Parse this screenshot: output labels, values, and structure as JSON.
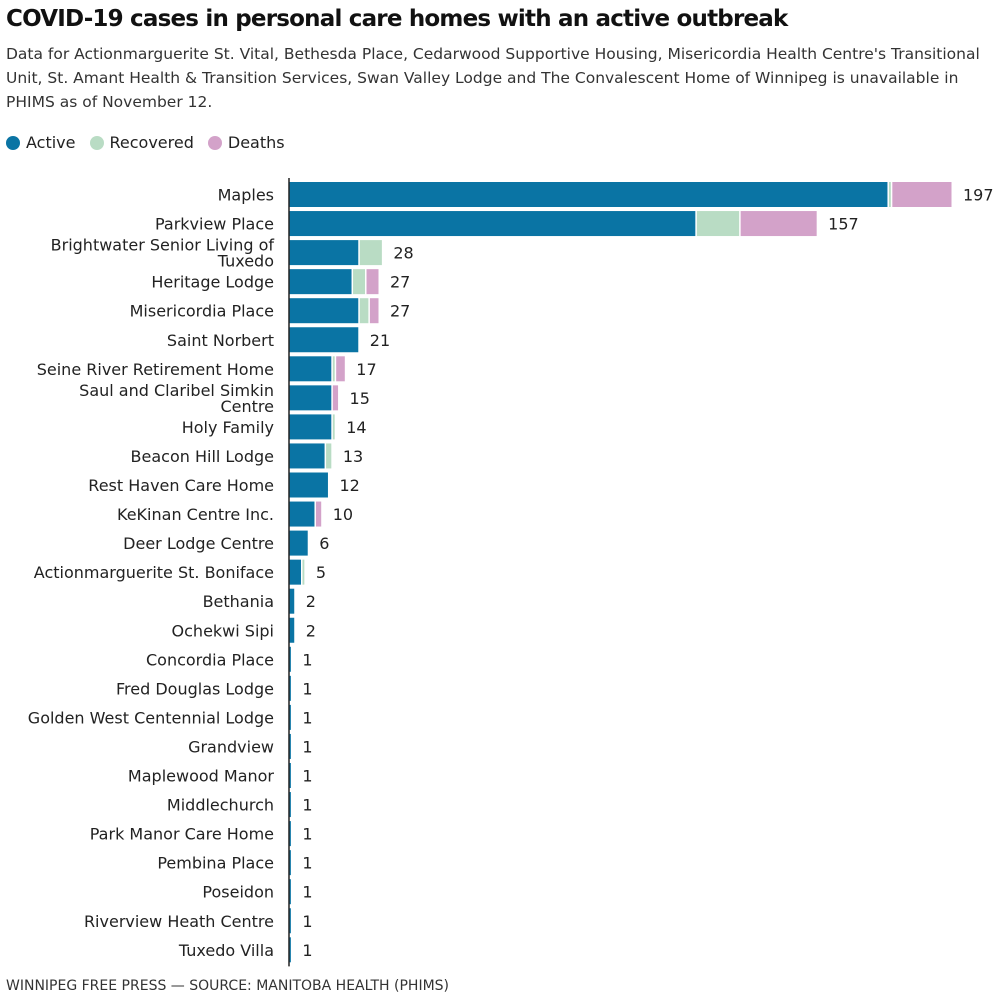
{
  "title": "COVID-19 cases in personal care homes with an active outbreak",
  "subtitle": "Data for Actionmarguerite St. Vital, Bethesda Place, Cedarwood Supportive Housing, Misericordia Health Centre's Transitional Unit, St. Amant Health & Transition Services, Swan Valley Lodge and The Convalescent Home of Winnipeg is unavailable in PHIMS as of November 12.",
  "footer": "WINNIPEG FREE PRESS — SOURCE: MANITOBA HEALTH (PHIMS)",
  "chart_data": {
    "type": "bar",
    "orientation": "horizontal",
    "stacked": true,
    "legend_position": "top-left",
    "grid": false,
    "xlim": [
      0,
      197
    ],
    "categories": [
      "Maples",
      "Parkview Place",
      "Brightwater Senior Living of Tuxedo",
      "Heritage Lodge",
      "Misericordia Place",
      "Saint Norbert",
      "Seine River Retirement Home",
      "Saul and Claribel Simkin Centre",
      "Holy Family",
      "Beacon Hill Lodge",
      "Rest Haven Care Home",
      "KeKinan Centre Inc.",
      "Deer Lodge Centre",
      "Actionmarguerite St. Boniface",
      "Bethania",
      "Ochekwi Sipi",
      "Concordia Place",
      "Fred Douglas Lodge",
      "Golden West Centennial Lodge",
      "Grandview",
      "Maplewood Manor",
      "Middlechurch",
      "Park Manor Care Home",
      "Pembina Place",
      "Poseidon",
      "Riverview Heath Centre",
      "Tuxedo Villa"
    ],
    "series": [
      {
        "name": "Active",
        "color": "#0a74a4",
        "values": [
          178,
          121,
          21,
          19,
          21,
          21,
          13,
          13,
          13,
          11,
          12,
          8,
          6,
          4,
          2,
          2,
          1,
          1,
          1,
          1,
          1,
          1,
          1,
          1,
          1,
          1,
          1
        ]
      },
      {
        "name": "Recovered",
        "color": "#b9dcc4",
        "values": [
          1,
          13,
          7,
          4,
          3,
          0,
          1,
          0,
          1,
          2,
          0,
          0,
          0,
          1,
          0,
          0,
          0,
          0,
          0,
          0,
          0,
          0,
          0,
          0,
          0,
          0,
          0
        ]
      },
      {
        "name": "Deaths",
        "color": "#d3a2c9",
        "values": [
          18,
          23,
          0,
          4,
          3,
          0,
          3,
          2,
          0,
          0,
          0,
          2,
          0,
          0,
          0,
          0,
          0,
          0,
          0,
          0,
          0,
          0,
          0,
          0,
          0,
          0,
          0
        ]
      }
    ],
    "totals": [
      "197",
      "157",
      "28",
      "27",
      "27",
      "21",
      "17",
      "15",
      "14",
      "13",
      "12",
      "10",
      "6",
      "5",
      "2",
      "2",
      "1",
      "1",
      "1",
      "1",
      "1",
      "1",
      "1",
      "1",
      "1",
      "1",
      "1"
    ]
  }
}
